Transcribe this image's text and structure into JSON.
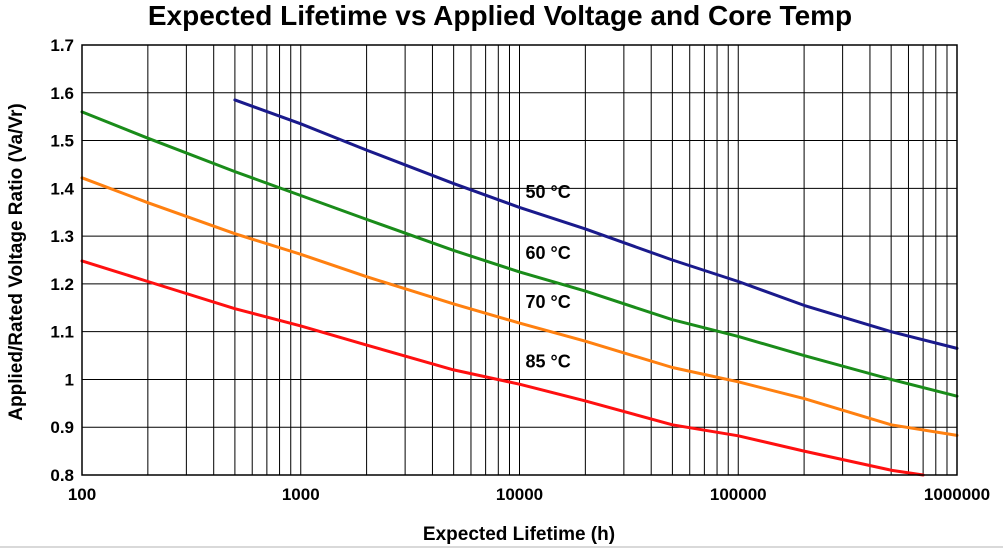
{
  "chart_data": {
    "type": "line",
    "title": "Expected Lifetime vs Applied Voltage and Core Temp",
    "xlabel": "Expected Lifetime (h)",
    "ylabel": "Applied/Rated Voltage Ratio (Va/Vr)",
    "xscale": "log",
    "xlim": [
      100,
      1000000
    ],
    "ylim": [
      0.8,
      1.7
    ],
    "xticks": [
      "100",
      "1000",
      "10000",
      "100000",
      "1000000"
    ],
    "yticks": [
      "0.8",
      "0.9",
      "1",
      "1.1",
      "1.2",
      "1.3",
      "1.4",
      "1.5",
      "1.6",
      "1.7"
    ],
    "grid": true,
    "series": [
      {
        "name": "50 °C",
        "color": "#1a1a8c",
        "x": [
          500,
          1000,
          2000,
          5000,
          10000,
          20000,
          50000,
          100000,
          200000,
          500000,
          1000000
        ],
        "y": [
          1.585,
          1.535,
          1.48,
          1.41,
          1.36,
          1.315,
          1.25,
          1.205,
          1.155,
          1.1,
          1.065
        ],
        "label_at": [
          10000,
          1.38
        ]
      },
      {
        "name": "60 °C",
        "color": "#1a8c1a",
        "x": [
          100,
          200,
          500,
          1000,
          2000,
          5000,
          10000,
          20000,
          50000,
          100000,
          200000,
          500000,
          1000000
        ],
        "y": [
          1.56,
          1.505,
          1.435,
          1.385,
          1.335,
          1.27,
          1.225,
          1.185,
          1.125,
          1.09,
          1.05,
          1.0,
          0.965
        ],
        "label_at": [
          10000,
          1.252
        ]
      },
      {
        "name": "70 °C",
        "color": "#ff8010",
        "x": [
          100,
          200,
          500,
          1000,
          2000,
          5000,
          10000,
          20000,
          50000,
          100000,
          200000,
          500000,
          1000000
        ],
        "y": [
          1.422,
          1.37,
          1.305,
          1.262,
          1.215,
          1.158,
          1.118,
          1.08,
          1.025,
          0.995,
          0.96,
          0.905,
          0.883
        ],
        "label_at": [
          10000,
          1.15
        ]
      },
      {
        "name": "85 °C",
        "color": "#ff1010",
        "x": [
          100,
          200,
          500,
          1000,
          2000,
          5000,
          10000,
          20000,
          50000,
          100000,
          200000,
          500000,
          700000
        ],
        "y": [
          1.248,
          1.205,
          1.148,
          1.112,
          1.072,
          1.02,
          0.99,
          0.955,
          0.905,
          0.882,
          0.85,
          0.81,
          0.8
        ],
        "label_at": [
          10000,
          1.025
        ]
      }
    ]
  }
}
